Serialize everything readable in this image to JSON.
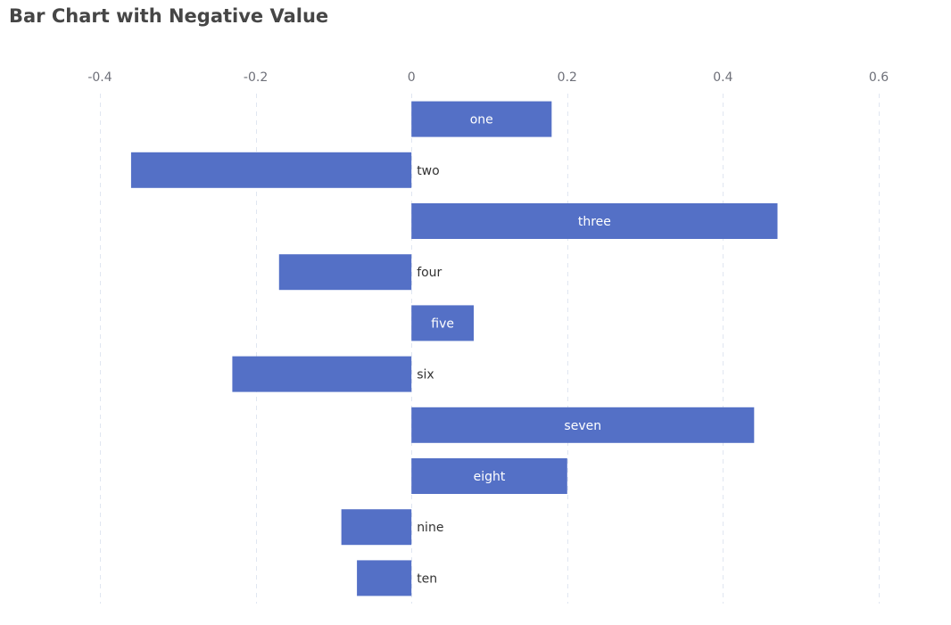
{
  "chart_data": {
    "type": "bar",
    "orientation": "horizontal",
    "title": "Bar Chart with Negative Value",
    "categories": [
      "one",
      "two",
      "three",
      "four",
      "five",
      "six",
      "seven",
      "eight",
      "nine",
      "ten"
    ],
    "values": [
      0.18,
      -0.36,
      0.47,
      -0.17,
      0.08,
      -0.23,
      0.44,
      0.2,
      -0.09,
      -0.07
    ],
    "xlim": [
      -0.4,
      0.6
    ],
    "xticks": [
      -0.4,
      -0.2,
      0,
      0.2,
      0.4,
      0.6
    ],
    "tick_labels": [
      "-0.4",
      "-0.2",
      "0",
      "0.2",
      "0.4",
      "0.6"
    ],
    "xaxis_position": "top",
    "grid": true,
    "grid_style": "dashed",
    "label_position": "inside for positive values, right of zero line for negative values",
    "colors": {
      "bar": "#5470c6",
      "grid": "#e0e6f1",
      "title": "#464646",
      "tick": "#6e7079",
      "label_dark": "#333333",
      "label_light": "#ffffff"
    }
  }
}
